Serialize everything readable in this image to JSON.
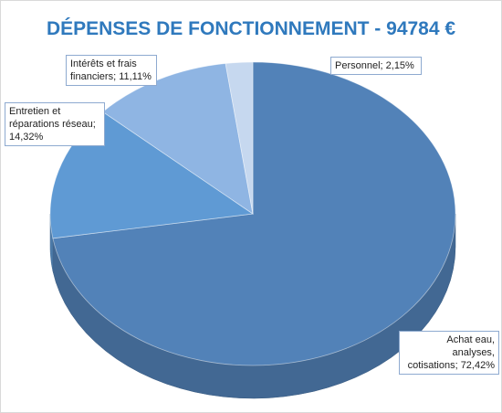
{
  "chart_data": {
    "type": "pie3d",
    "title": "DÉPENSES DE FONCTIONNEMENT - 94784 €",
    "values": [
      72.42,
      14.32,
      11.11,
      2.15
    ],
    "value_labels": [
      "Achat eau, analyses, cotisations; 72,42%",
      "Entretien et réparations réseau; 14,32%",
      "Intérêts et frais financiers; 11,11%",
      "Personnel; 2,15%"
    ],
    "colors": [
      "#5282b8",
      "#5f9ad4",
      "#8fb5e3",
      "#c6d8ef"
    ]
  }
}
